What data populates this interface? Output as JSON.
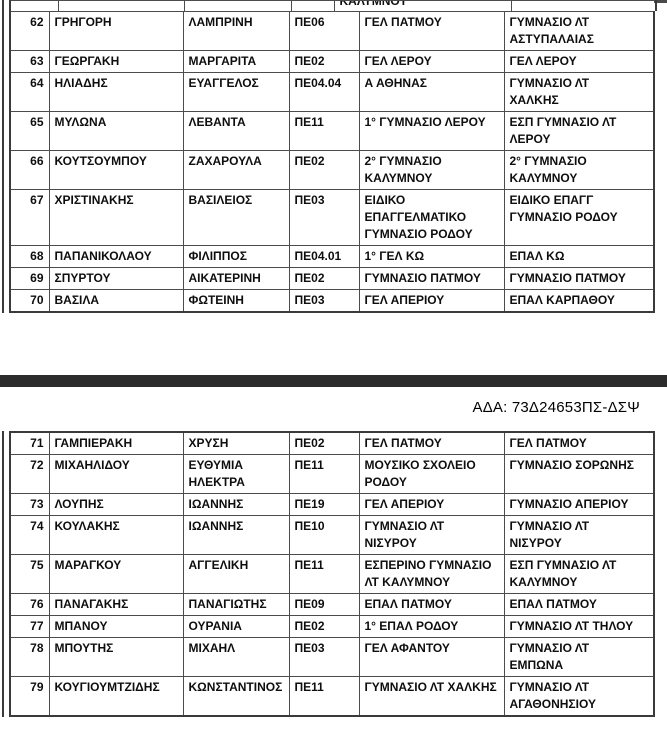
{
  "document": {
    "ada_code": "ΑΔΑ: 73Δ24653ΠΣ-ΔΣΨ",
    "colors": {
      "separator_bar": "#2c2c2c",
      "table_border": "#4c4c4c",
      "text": "#0e0e0e"
    },
    "tables": [
      {
        "partial_row": {
          "school_from": "ΚΑΛΥΜΝΟΥ"
        },
        "rows": [
          {
            "num": "62",
            "surname": "ΓΡΗΓΟΡΗ",
            "firstname": "ΛΑΜΠΡΙΝΗ",
            "code": "ΠΕ06",
            "school_from": "ΓΕΛ ΠΑΤΜΟΥ",
            "school_to": "ΓΥΜΝΑΣΙΟ ΛΤ\nΑΣΤΥΠΑΛΑΙΑΣ"
          },
          {
            "num": "63",
            "surname": "ΓΕΩΡΓΑΚΗ",
            "firstname": "ΜΑΡΓΑΡΙΤΑ",
            "code": "ΠΕ02",
            "school_from": "ΓΕΛ ΛΕΡΟΥ",
            "school_to": "ΓΕΛ ΛΕΡΟΥ"
          },
          {
            "num": "64",
            "surname": "ΗΛΙΑΔΗΣ",
            "firstname": "ΕΥΑΓΓΕΛΟΣ",
            "code": "ΠΕ04.04",
            "school_from": "Α ΑΘΗΝΑΣ",
            "school_to": "ΓΥΜΝΑΣΙΟ ΛΤ\nΧΑΛΚΗΣ"
          },
          {
            "num": "65",
            "surname": "ΜΥΛΩΝΑ",
            "firstname": "ΛΕΒΑΝΤΑ",
            "code": "ΠΕ11",
            "school_from": "1° ΓΥΜΝΑΣΙΟ ΛΕΡΟΥ",
            "school_to": "ΕΣΠ ΓΥΜΝΑΣΙΟ ΛΤ\nΛΕΡΟΥ"
          },
          {
            "num": "66",
            "surname": "ΚΟΥΤΣΟΥΜΠΟΥ",
            "firstname": "ΖΑΧΑΡΟΥΛΑ",
            "code": "ΠΕ02",
            "school_from": "2° ΓΥΜΝΑΣΙΟ\nΚΑΛΥΜΝΟΥ",
            "school_to": "2° ΓΥΜΝΑΣΙΟ\nΚΑΛΥΜΝΟΥ"
          },
          {
            "num": "67",
            "surname": "ΧΡΙΣΤΙΝΑΚΗΣ",
            "firstname": "ΒΑΣΙΛΕΙΟΣ",
            "code": "ΠΕ03",
            "school_from": "ΕΙΔΙΚΟ\nΕΠΑΓΓΕΛΜΑΤΙΚΟ\nΓΥΜΝΑΣΙΟ ΡΟΔΟΥ",
            "school_to": "ΕΙΔΙΚΟ ΕΠΑΓΓ\nΓΥΜΝΑΣΙΟ ΡΟΔΟΥ"
          },
          {
            "num": "68",
            "surname": "ΠΑΠΑΝΙΚΟΛΑΟΥ",
            "firstname": "ΦΙΛΙΠΠΟΣ",
            "code": "ΠΕ04.01",
            "school_from": "1° ΓΕΛ ΚΩ",
            "school_to": "ΕΠΑΛ ΚΩ"
          },
          {
            "num": "69",
            "surname": "ΣΠΥΡΤΟΥ",
            "firstname": "ΑΙΚΑΤΕΡΙΝΗ",
            "code": "ΠΕ02",
            "school_from": "ΓΥΜΝΑΣΙΟ ΠΑΤΜΟΥ",
            "school_to": "ΓΥΜΝΑΣΙΟ ΠΑΤΜΟΥ"
          },
          {
            "num": "70",
            "surname": "ΒΑΣΙΛΑ",
            "firstname": "ΦΩΤΕΙΝΗ",
            "code": "ΠΕ03",
            "school_from": "ΓΕΛ ΑΠΕΡΙΟΥ",
            "school_to": "ΕΠΑΛ ΚΑΡΠΑΘΟΥ"
          }
        ]
      },
      {
        "rows": [
          {
            "num": "71",
            "surname": "ΓΑΜΠΙΕΡΑΚΗ",
            "firstname": "ΧΡΥΣΗ",
            "code": "ΠΕ02",
            "school_from": "ΓΕΛ ΠΑΤΜΟΥ",
            "school_to": "ΓΕΛ ΠΑΤΜΟΥ"
          },
          {
            "num": "72",
            "surname": "ΜΙΧΑΗΛΙΔΟΥ",
            "firstname": "ΕΥΘΥΜΙΑ\nΗΛΕΚΤΡΑ",
            "code": "ΠΕ11",
            "school_from": "ΜΟΥΣΙΚΟ ΣΧΟΛΕΙΟ\nΡΟΔΟΥ",
            "school_to": "ΓΥΜΝΑΣΙΟ ΣΟΡΩΝΗΣ"
          },
          {
            "num": "73",
            "surname": "ΛΟΥΠΗΣ",
            "firstname": "ΙΩΑΝΝΗΣ",
            "code": "ΠΕ19",
            "school_from": "ΓΕΛ ΑΠΕΡΙΟΥ",
            "school_to": "ΓΥΜΝΑΣΙΟ ΑΠΕΡΙΟΥ"
          },
          {
            "num": "74",
            "surname": "ΚΟΥΛΑΚΗΣ",
            "firstname": "ΙΩΑΝΝΗΣ",
            "code": "ΠΕ10",
            "school_from": "ΓΥΜΝΑΣΙΟ ΛΤ\nΝΙΣΥΡΟΥ",
            "school_to": "ΓΥΜΝΑΣΙΟ ΛΤ\nΝΙΣΥΡΟΥ"
          },
          {
            "num": "75",
            "surname": "ΜΑΡΑΓΚΟΥ",
            "firstname": "ΑΓΓΕΛΙΚΗ",
            "code": "ΠΕ11",
            "school_from": "ΕΣΠΕΡΙΝΟ ΓΥΜΝΑΣΙΟ\nΛΤ ΚΑΛΥΜΝΟΥ",
            "school_to": "ΕΣΠ ΓΥΜΝΑΣΙΟ ΛΤ\nΚΑΛΥΜΝΟΥ"
          },
          {
            "num": "76",
            "surname": "ΠΑΝΑΓΑΚΗΣ",
            "firstname": "ΠΑΝΑΓΙΩΤΗΣ",
            "code": "ΠΕ09",
            "school_from": "ΕΠΑΛ ΠΑΤΜΟΥ",
            "school_to": "ΕΠΑΛ ΠΑΤΜΟΥ"
          },
          {
            "num": "77",
            "surname": "ΜΠΑΝΟΥ",
            "firstname": "ΟΥΡΑΝΙΑ",
            "code": "ΠΕ02",
            "school_from": "1° ΕΠΑΛ ΡΟΔΟΥ",
            "school_to": "ΓΥΜΝΑΣΙΟ ΛΤ ΤΗΛΟΥ"
          },
          {
            "num": "78",
            "surname": "ΜΠΟΥΤΗΣ",
            "firstname": "ΜΙΧΑΗΛ",
            "code": "ΠΕ03",
            "school_from": "ΓΕΛ ΑΦΑΝΤΟΥ",
            "school_to": "ΓΥΜΝΑΣΙΟ ΛΤ\nΕΜΠΩΝΑ"
          },
          {
            "num": "79",
            "surname": "ΚΟΥΓΙΟΥΜΤΖΙΔΗΣ",
            "firstname": "ΚΩΝΣΤΑΝΤΙΝΟΣ",
            "code": "ΠΕ11",
            "school_from": "ΓΥΜΝΑΣΙΟ ΛΤ ΧΑΛΚΗΣ",
            "school_to": "ΓΥΜΝΑΣΙΟ ΛΤ\nΑΓΑΘΟΝΗΣΙΟΥ"
          }
        ]
      }
    ]
  }
}
